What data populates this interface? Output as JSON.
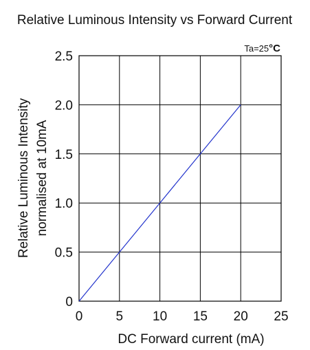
{
  "chart_data": {
    "type": "line",
    "title": "Relative Luminous Intensity vs Forward Current",
    "xlabel": "DC Forward current (mA)",
    "ylabel_lines": [
      "Relative Luminous Intensity",
      "normalised at 10mA"
    ],
    "annotation": {
      "prefix": "Ta=25",
      "unit": "°C"
    },
    "xlim": [
      0,
      25
    ],
    "ylim": [
      0,
      2.5
    ],
    "x_ticks": [
      "0",
      "5",
      "10",
      "15",
      "20",
      "25"
    ],
    "y_ticks": [
      "0",
      "0.5",
      "1.0",
      "1.5",
      "2.0",
      "2.5"
    ],
    "grid": true,
    "series": [
      {
        "x": [
          0,
          5,
          10,
          15,
          20
        ],
        "y": [
          0,
          0.5,
          1.0,
          1.5,
          2.0
        ],
        "color": "#2233cc"
      }
    ]
  }
}
